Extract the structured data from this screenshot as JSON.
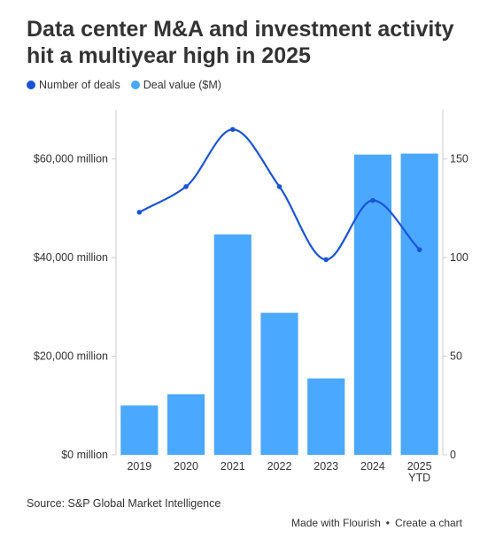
{
  "header": {
    "title": "Data center M&A and investment activity hit a multiyear high in 2025"
  },
  "legend": {
    "items": [
      {
        "label": "Number of deals",
        "color": "#1a54d4"
      },
      {
        "label": "Deal value ($M)",
        "color": "#4aa8ff"
      }
    ]
  },
  "chart_data": {
    "type": "bar",
    "categories": [
      "2019",
      "2020",
      "2021",
      "2022",
      "2023",
      "2024",
      "2025 YTD"
    ],
    "category_labels": [
      [
        "2019"
      ],
      [
        "2020"
      ],
      [
        "2021"
      ],
      [
        "2022"
      ],
      [
        "2023"
      ],
      [
        "2024"
      ],
      [
        "2025",
        "YTD"
      ]
    ],
    "series": [
      {
        "name": "Deal value ($M)",
        "type": "bar",
        "axis": "left",
        "color": "#4aa8ff",
        "values": [
          10000,
          12300,
          44700,
          28800,
          15500,
          60900,
          61100
        ]
      },
      {
        "name": "Number of deals",
        "type": "line",
        "axis": "right",
        "color": "#1a54d4",
        "values": [
          123,
          136,
          165,
          136,
          99,
          129,
          104
        ]
      }
    ],
    "y_left": {
      "min": 0,
      "max": 70000,
      "ticks": [
        0,
        20000,
        40000,
        60000
      ],
      "tick_labels": [
        "$0 million",
        "$20,000 million",
        "$40,000 million",
        "$60,000 million"
      ]
    },
    "y_right": {
      "min": 0,
      "max": 175,
      "ticks": [
        0,
        50,
        100,
        150
      ],
      "tick_labels": [
        "0",
        "50",
        "100",
        "150"
      ]
    },
    "xlabel": "",
    "ylabel": "",
    "grid": false,
    "legend_position": "top-left"
  },
  "footer": {
    "source": "Source: S&P Global Market Intelligence",
    "made_with": "Made with Flourish",
    "separator": "•",
    "create": "Create a chart"
  }
}
